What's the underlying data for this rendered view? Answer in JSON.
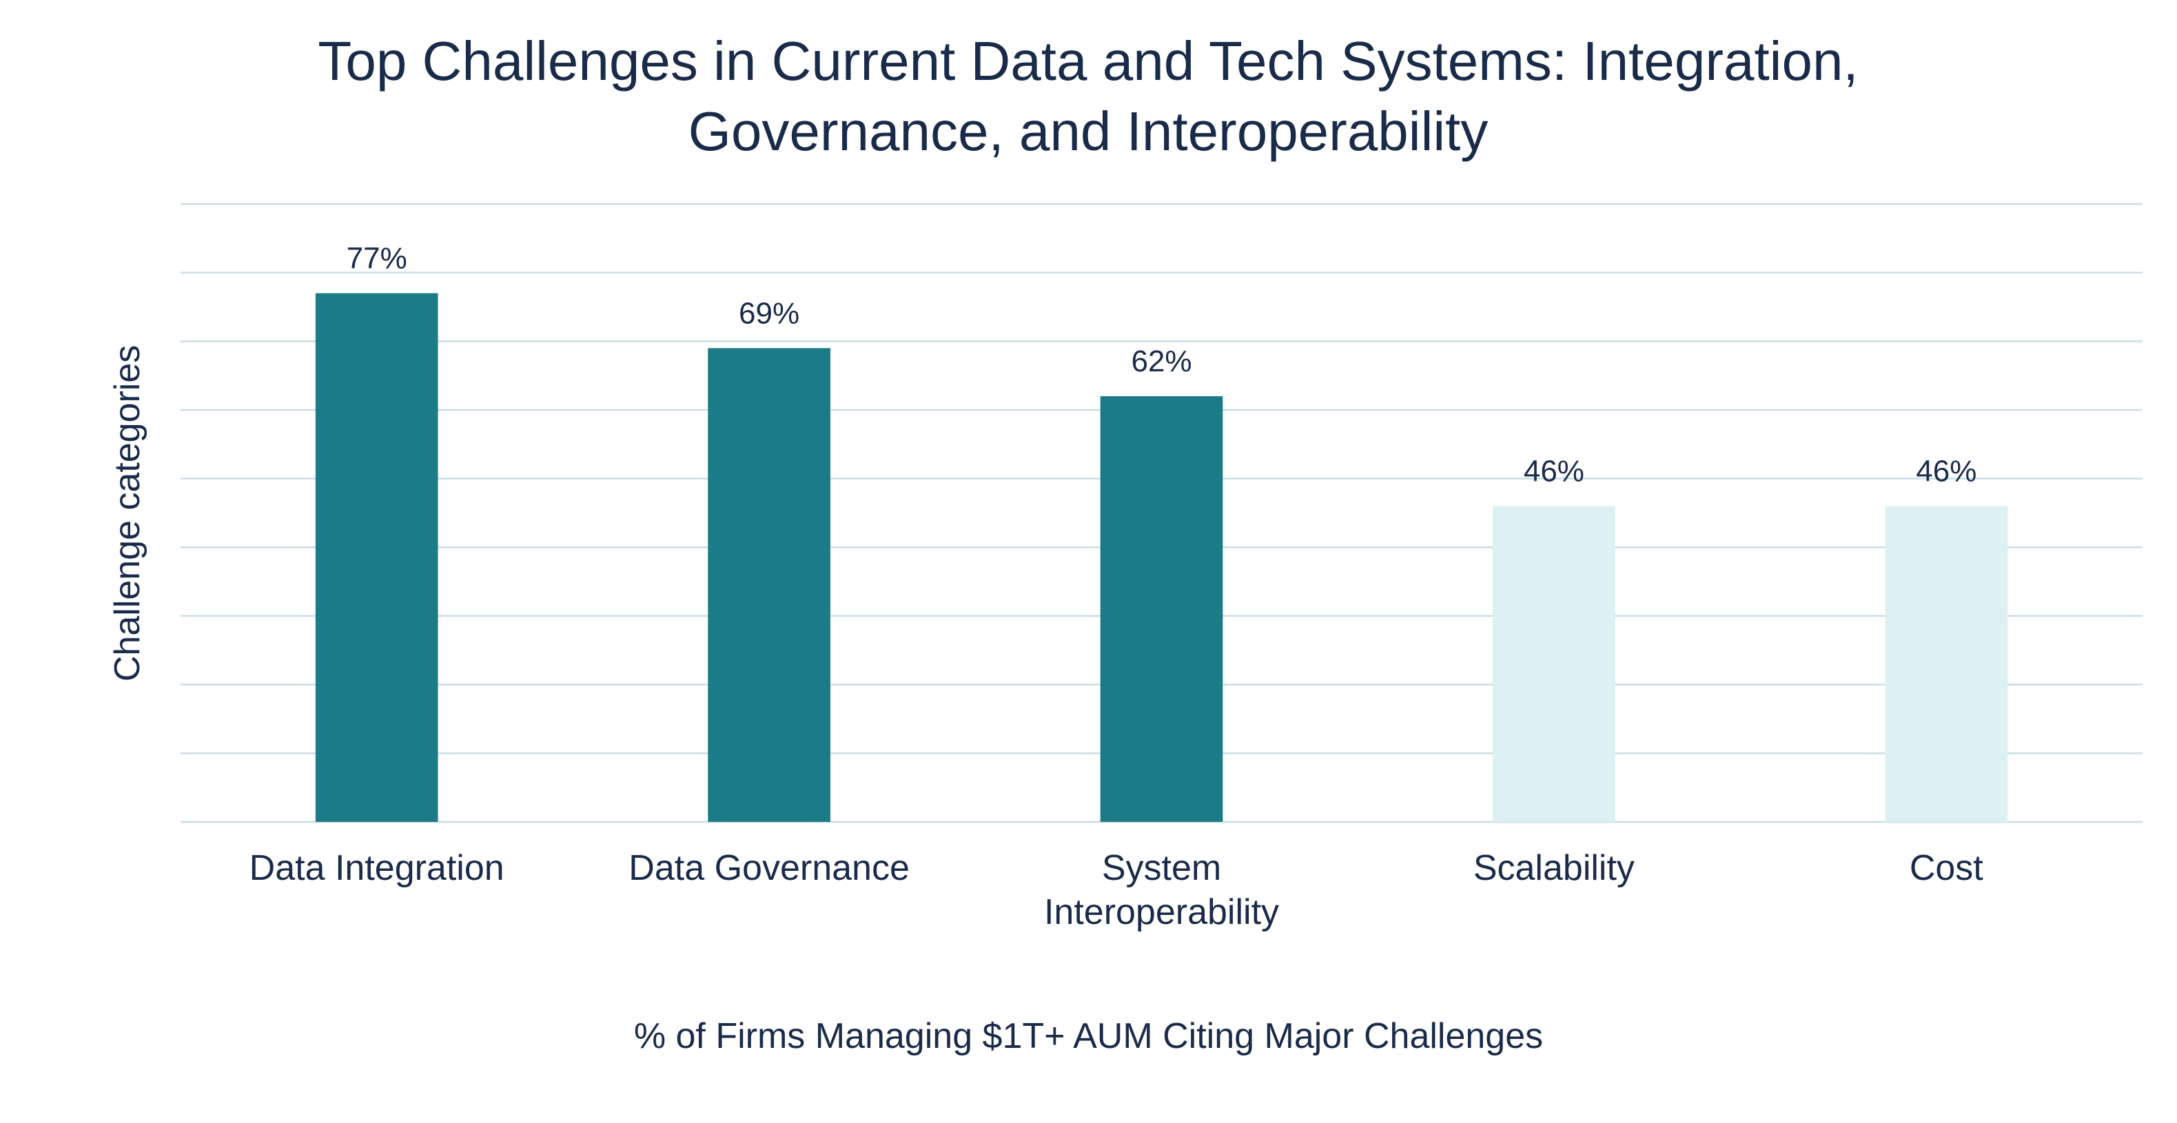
{
  "chart_data": {
    "type": "bar",
    "title": "Top Challenges in Current Data and Tech Systems: Integration, Governance, and Interoperability",
    "x_label": "% of Firms Managing $1T+ AUM Citing Major Challenges",
    "y_label": "Challenge categories",
    "categories": [
      "Data Integration",
      "Data Governance",
      "System Interoperability",
      "Scalability",
      "Cost"
    ],
    "values": [
      77,
      69,
      62,
      46,
      46
    ],
    "value_labels": [
      "77%",
      "69%",
      "62%",
      "46%",
      "46%"
    ],
    "colors": [
      "#1b7b87",
      "#1b7b87",
      "#1b7b87",
      "#ddf0f4",
      "#ddf0f4"
    ],
    "ylim": [
      0,
      90
    ],
    "yticks": [
      0,
      10,
      20,
      30,
      40,
      50,
      60,
      70,
      80,
      90
    ],
    "grid": true
  }
}
